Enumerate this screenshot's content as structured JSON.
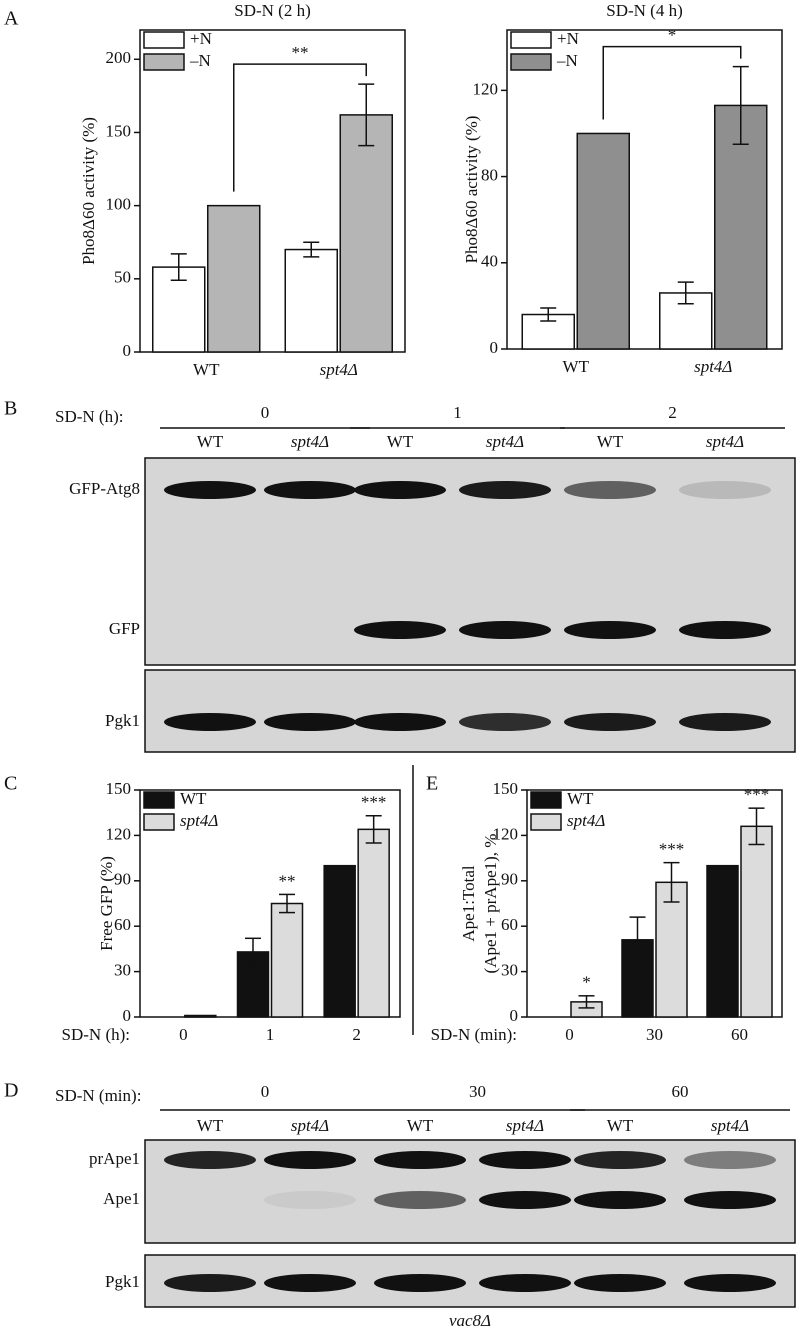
{
  "panels": [
    "A",
    "B",
    "C",
    "D",
    "E"
  ],
  "chart_data": [
    {
      "type": "bar",
      "title": "SD-N (2 h)",
      "ylabel": "Pho8Δ60 activity (%)",
      "categories": [
        "WT",
        "spt4Δ"
      ],
      "series": [
        {
          "name": "+N",
          "color": "#ffffff",
          "values": [
            58,
            70
          ],
          "errors": [
            9,
            5
          ]
        },
        {
          "name": "–N",
          "color": "#b5b5b5",
          "values": [
            100,
            162
          ],
          "errors": [
            0,
            21
          ]
        }
      ],
      "ylim": [
        0,
        220
      ],
      "yticks": [
        0,
        50,
        100,
        150,
        200
      ],
      "bracket_label": "**"
    },
    {
      "type": "bar",
      "title": "SD-N (4 h)",
      "ylabel": "Pho8Δ60 activity (%)",
      "categories": [
        "WT",
        "spt4Δ"
      ],
      "series": [
        {
          "name": "+N",
          "color": "#ffffff",
          "values": [
            16,
            26
          ],
          "errors": [
            3,
            5
          ]
        },
        {
          "name": "–N",
          "color": "#8f8f8f",
          "values": [
            100,
            113
          ],
          "errors": [
            0,
            18
          ]
        }
      ],
      "ylim": [
        0,
        148
      ],
      "yticks": [
        0,
        40,
        80,
        120
      ],
      "bracket_label": "*"
    },
    {
      "type": "bar",
      "ylabel": "Free GFP (%)",
      "xlabel": "SD-N (h):",
      "categories": [
        "0",
        "1",
        "2"
      ],
      "series": [
        {
          "name": "WT",
          "color": "#111111",
          "values": [
            0,
            43,
            100
          ],
          "errors": [
            0,
            9,
            0
          ]
        },
        {
          "name": "spt4Δ",
          "color": "#dcdcdc",
          "values": [
            1,
            75,
            124
          ],
          "errors": [
            0,
            6,
            9
          ]
        }
      ],
      "ylim": [
        0,
        150
      ],
      "yticks": [
        0,
        30,
        60,
        90,
        120,
        150
      ],
      "significance": [
        null,
        "**",
        "***"
      ]
    },
    {
      "type": "bar",
      "ylabel": [
        "Ape1:Total",
        "(Ape1 + prApe1), %"
      ],
      "xlabel": "SD-N (min):",
      "categories": [
        "0",
        "30",
        "60"
      ],
      "series": [
        {
          "name": "WT",
          "color": "#111111",
          "values": [
            0,
            51,
            100
          ],
          "errors": [
            0,
            15,
            0
          ]
        },
        {
          "name": "spt4Δ",
          "color": "#dcdcdc",
          "values": [
            10,
            89,
            126
          ],
          "errors": [
            4,
            13,
            12
          ]
        }
      ],
      "ylim": [
        0,
        150
      ],
      "yticks": [
        0,
        30,
        60,
        90,
        120,
        150
      ],
      "significance": [
        "*",
        "***",
        "***"
      ]
    }
  ],
  "blots": [
    {
      "condition_label": "SD-N (h):",
      "groups": [
        "0",
        "1",
        "2"
      ],
      "lanes": [
        "WT",
        "spt4Δ",
        "WT",
        "spt4Δ",
        "WT",
        "spt4Δ"
      ],
      "bands": [
        "GFP-Atg8",
        "GFP",
        "Pgk1"
      ]
    },
    {
      "condition_label": "SD-N (min):",
      "groups": [
        "0",
        "30",
        "60"
      ],
      "lanes": [
        "WT",
        "spt4Δ",
        "WT",
        "spt4Δ",
        "WT",
        "spt4Δ"
      ],
      "bands": [
        "prApe1",
        "Ape1",
        "Pgk1"
      ],
      "footer": "vac8Δ"
    }
  ]
}
